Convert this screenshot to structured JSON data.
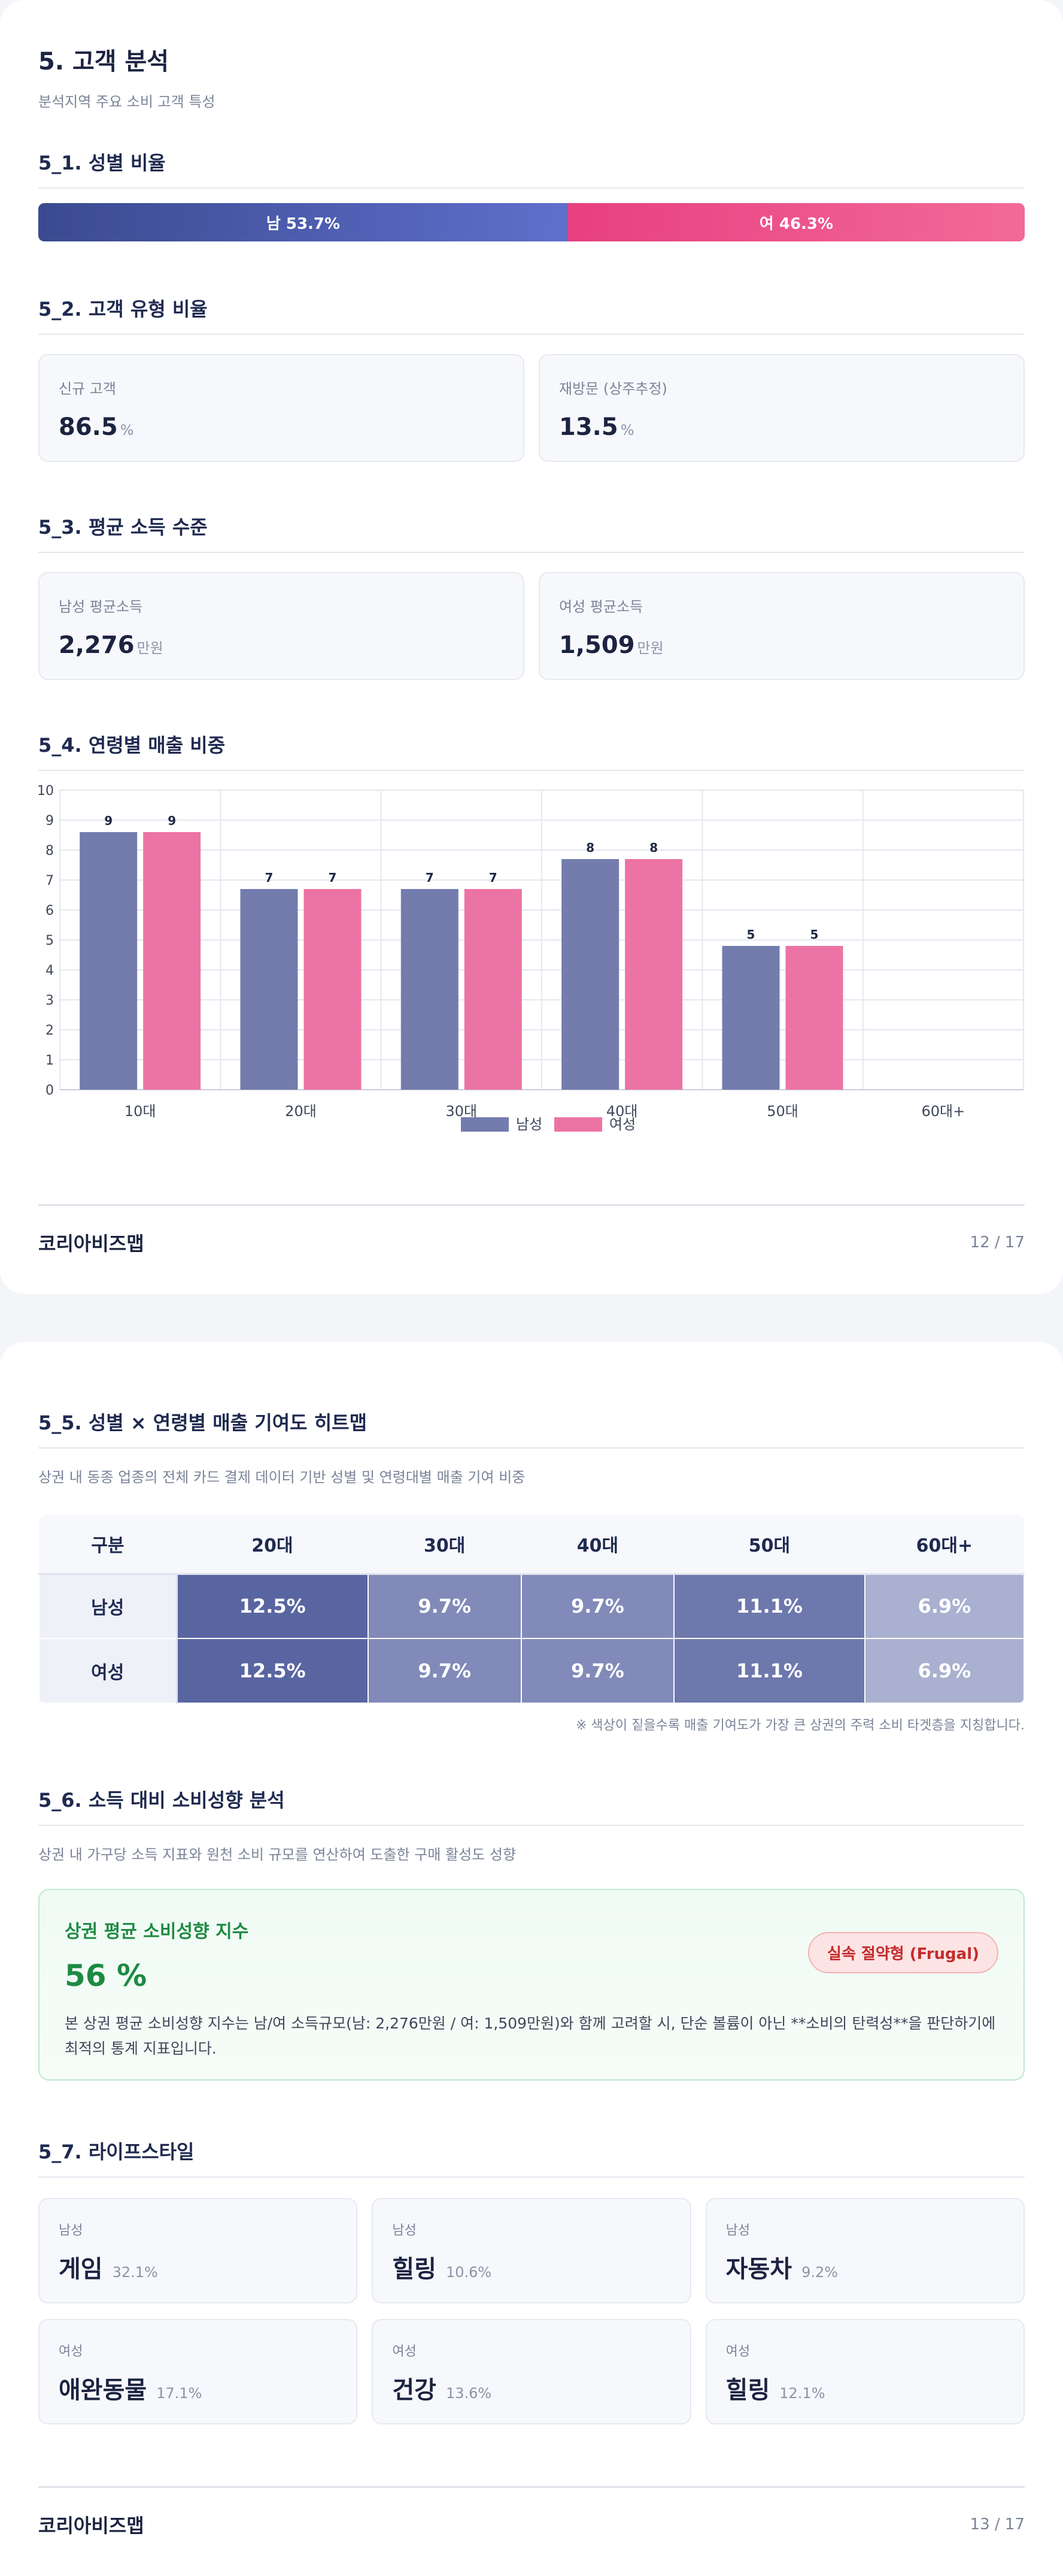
{
  "page1": {
    "title": "5. 고객 분석",
    "subtitle": "분석지역 주요 소비 고객 특성",
    "gender_title": "5_1. 성별 비율",
    "gender": {
      "male_label": "남 53.7%",
      "female_label": "여 46.3%",
      "male_pct": 53.7,
      "female_pct": 46.3
    },
    "type_title": "5_2. 고객 유형 비율",
    "type_cards": [
      {
        "label": "신규 고객",
        "value": "86.5",
        "unit": "%"
      },
      {
        "label": "재방문 (상주추정)",
        "value": "13.5",
        "unit": "%"
      }
    ],
    "income_title": "5_3. 평균 소득 수준",
    "income_cards": [
      {
        "label": "남성 평균소득",
        "value": "2,276",
        "unit": "만원"
      },
      {
        "label": "여성 평균소득",
        "value": "1,509",
        "unit": "만원"
      }
    ],
    "age_title": "5_4. 연령별 매출 비중",
    "footer": {
      "brand": "코리아비즈맵",
      "page": "12 / 17"
    }
  },
  "chart_data": {
    "type": "bar",
    "categories": [
      "10대",
      "20대",
      "30대",
      "40대",
      "50대",
      "60대+"
    ],
    "series": [
      {
        "name": "남성",
        "values": [
          8.6,
          6.7,
          6.7,
          7.7,
          4.8,
          0
        ],
        "labels": [
          "9",
          "7",
          "7",
          "8",
          "5",
          ""
        ],
        "color": "#737cad"
      },
      {
        "name": "여성",
        "values": [
          8.6,
          6.7,
          6.7,
          7.7,
          4.8,
          0
        ],
        "labels": [
          "9",
          "7",
          "7",
          "8",
          "5",
          ""
        ],
        "color": "#ec74a4"
      }
    ],
    "yticks": [
      "0",
      "1",
      "2",
      "3",
      "4",
      "5",
      "6",
      "7",
      "8",
      "9",
      "10"
    ],
    "ylim": [
      0,
      10
    ],
    "grid": true,
    "legend_position": "bottom-center"
  },
  "page2": {
    "heatmap_title": "5_5. 성별 × 연령별 매출 기여도 히트맵",
    "heatmap_desc": "상권 내 동종 업종의 전체 카드 결제 데이터 기반 성별 및 연령대별 매출 기여 비중",
    "heatmap": {
      "corner": "구분",
      "columns": [
        "20대",
        "30대",
        "40대",
        "50대",
        "60대+"
      ],
      "rows": [
        {
          "label": "남성",
          "cells": [
            "12.5%",
            "9.7%",
            "9.7%",
            "11.1%",
            "6.9%"
          ],
          "values": [
            12.5,
            9.7,
            9.7,
            11.1,
            6.9
          ]
        },
        {
          "label": "여성",
          "cells": [
            "12.5%",
            "9.7%",
            "9.7%",
            "11.1%",
            "6.9%"
          ],
          "values": [
            12.5,
            9.7,
            9.7,
            11.1,
            6.9
          ]
        }
      ],
      "note": "※ 색상이 짙을수록 매출 기여도가 가장 큰 상권의 주력 소비 타겟층을 지칭합니다."
    },
    "spend_title": "5_6. 소득 대비 소비성향 분석",
    "spend_desc": "상권 내 가구당 소득 지표와 원천 소비 규모를 연산하여 도출한 구매 활성도 성향",
    "spend": {
      "label": "상권 평균 소비성향 지수",
      "value": "56 %",
      "badge": "실속 절약형 (Frugal)",
      "description": "본 상권 평균 소비성향 지수는 남/여 소득규모(남: 2,276만원 / 여: 1,509만원)와 함께 고려할 시, 단순 볼륨이 아닌 **소비의 탄력성**을 판단하기에 최적의 통계 지표입니다."
    },
    "lifestyle_title": "5_7. 라이프스타일",
    "lifestyle": [
      {
        "gender": "남성",
        "name": "게임",
        "pct": "32.1%"
      },
      {
        "gender": "남성",
        "name": "힐링",
        "pct": "10.6%"
      },
      {
        "gender": "남성",
        "name": "자동차",
        "pct": "9.2%"
      },
      {
        "gender": "여성",
        "name": "애완동물",
        "pct": "17.1%"
      },
      {
        "gender": "여성",
        "name": "건강",
        "pct": "13.6%"
      },
      {
        "gender": "여성",
        "name": "힐링",
        "pct": "12.1%"
      }
    ],
    "footer": {
      "brand": "코리아비즈맵",
      "page": "13 / 17"
    }
  }
}
